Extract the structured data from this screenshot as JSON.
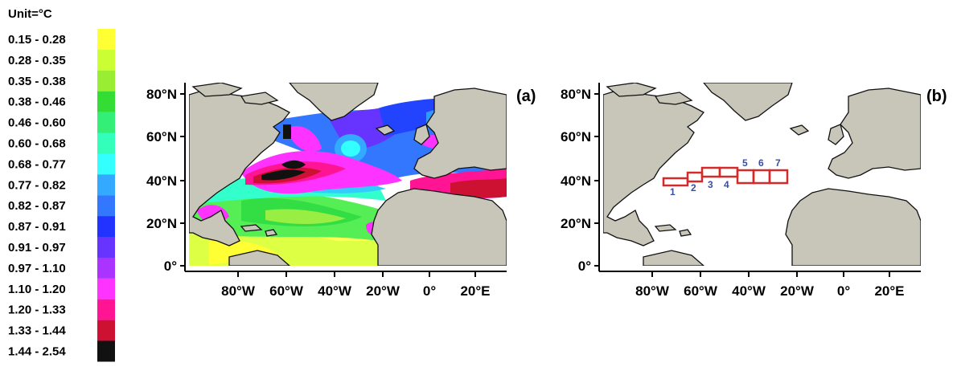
{
  "legend": {
    "unit": "Unit=°C",
    "classes": [
      {
        "range": "0.15  -  0.28",
        "color": "#ffff33"
      },
      {
        "range": "0.28  -  0.35",
        "color": "#ccff33"
      },
      {
        "range": "0.35  -  0.38",
        "color": "#99ee33"
      },
      {
        "range": "0.38  -  0.46",
        "color": "#33dd33"
      },
      {
        "range": "0.46  -  0.60",
        "color": "#33ee77"
      },
      {
        "range": "0.60  -  0.68",
        "color": "#33ffbb"
      },
      {
        "range": "0.68  -  0.77",
        "color": "#33ffff"
      },
      {
        "range": "0.77  -  0.82",
        "color": "#33aaff"
      },
      {
        "range": "0.82  -  0.87",
        "color": "#3377ff"
      },
      {
        "range": "0.87  -  0.91",
        "color": "#2233ff"
      },
      {
        "range": "0.91  -  0.97",
        "color": "#6633ff"
      },
      {
        "range": "0.97  -  1.10",
        "color": "#aa33ff"
      },
      {
        "range": "1.10  -  1.20",
        "color": "#ff33ff"
      },
      {
        "range": "1.20  -  1.33",
        "color": "#ff1493"
      },
      {
        "range": "1.33  -  1.44",
        "color": "#cc1133"
      },
      {
        "range": "1.44  -  2.54",
        "color": "#111111"
      }
    ]
  },
  "panel_a": {
    "label": "(a)",
    "lat_ticks": [
      "80°N",
      "60°N",
      "40°N",
      "20°N",
      "0°"
    ],
    "lon_ticks": [
      "80°W",
      "60°W",
      "40°W",
      "20°W",
      "0°",
      "20°E"
    ]
  },
  "panel_b": {
    "label": "(b)",
    "lat_ticks": [
      "80°N",
      "60°N",
      "40°N",
      "20°N",
      "0°"
    ],
    "lon_ticks": [
      "80°W",
      "60°W",
      "40°W",
      "20°W",
      "0°",
      "20°E"
    ],
    "boxes": [
      "1",
      "2",
      "3",
      "4",
      "5",
      "6",
      "7"
    ]
  },
  "colors": {
    "land": "#c8c6b8",
    "coast": "#111111",
    "box_outline": "#d42a2a",
    "box_label": "#3a4fa0"
  }
}
